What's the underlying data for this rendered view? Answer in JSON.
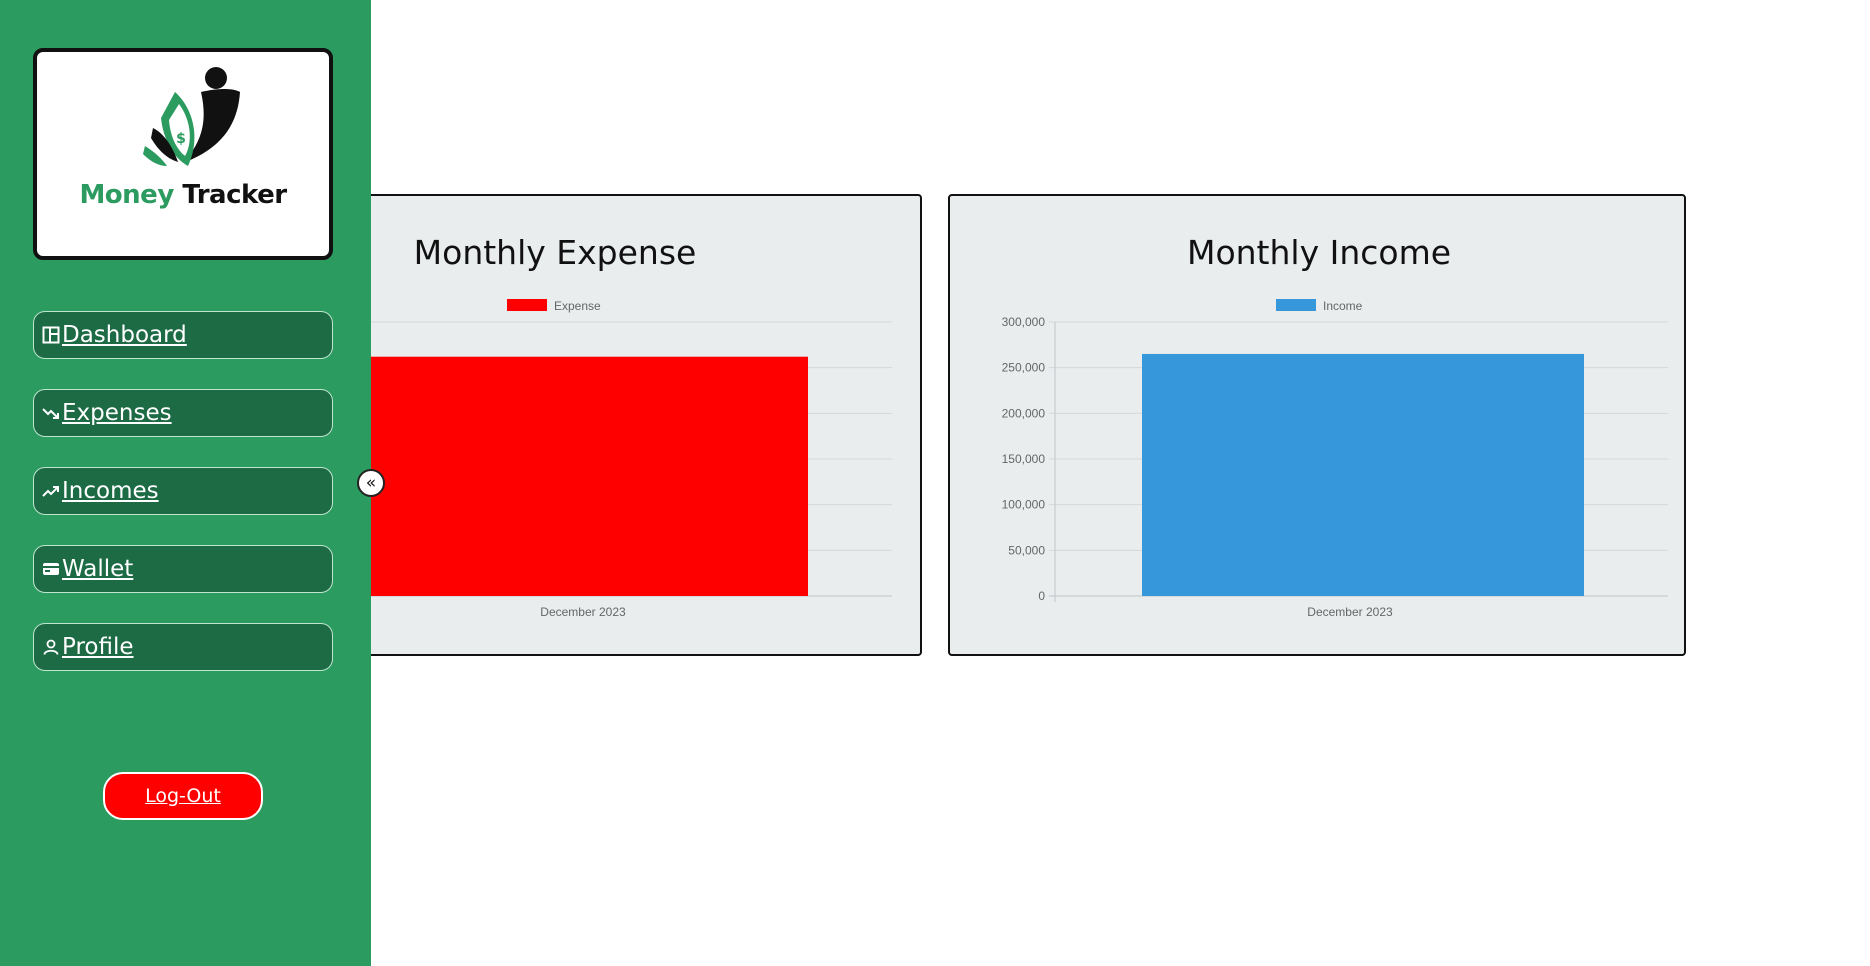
{
  "brand": {
    "word1": "Money",
    "word2": "Tracker"
  },
  "sidebar": {
    "items": [
      {
        "label": "Dashboard",
        "icon": "dashboard-icon"
      },
      {
        "label": "Expenses",
        "icon": "trending-down-icon"
      },
      {
        "label": "Incomes",
        "icon": "trending-up-icon"
      },
      {
        "label": "Wallet",
        "icon": "wallet-icon"
      },
      {
        "label": "Profile",
        "icon": "user-icon"
      }
    ],
    "logout_label": "Log-Out",
    "collapse_label": "«"
  },
  "colors": {
    "sidebar": "#2b9b60",
    "nav_item": "#1d6b45",
    "logout": "#ff0000",
    "expense": "#ff0000",
    "income": "#3698db"
  },
  "chart_data": [
    {
      "type": "bar",
      "title": "Monthly Expense",
      "categories": [
        "December 2023"
      ],
      "series": [
        {
          "name": "Expense",
          "values": [
            262000
          ],
          "color": "#ff0000"
        }
      ],
      "ylim": [
        0,
        300000
      ],
      "yticks": [],
      "legend": "top-center",
      "grid": true
    },
    {
      "type": "bar",
      "title": "Monthly Income",
      "categories": [
        "December 2023"
      ],
      "series": [
        {
          "name": "Income",
          "values": [
            265000
          ],
          "color": "#3698db"
        }
      ],
      "ylim": [
        0,
        300000
      ],
      "yticks": [
        "0",
        "50,000",
        "100,000",
        "150,000",
        "200,000",
        "250,000",
        "300,000"
      ],
      "legend": "top-center",
      "grid": true
    }
  ]
}
